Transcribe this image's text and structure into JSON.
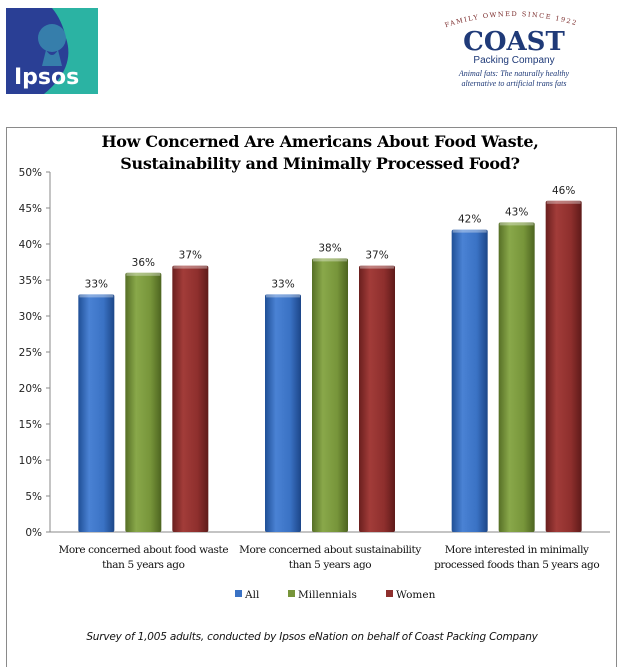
{
  "logos": {
    "left": {
      "text": "Ipsos",
      "icon": "ipsos-silhouette-logo"
    },
    "right": {
      "arc_text": "FAMILY OWNED SINCE 1922",
      "brand": "COAST",
      "brand_sub": "Packing Company",
      "tagline_1": "Animal fats: The naturally healthy",
      "tagline_2": "alternative to artificial trans fats"
    }
  },
  "footer": "Survey of 1,005 adults, conducted by Ipsos eNation on behalf of Coast Packing Company",
  "chart_data": {
    "type": "bar",
    "title": "How Concerned Are Americans About Food Waste, Sustainability and Minimally Processed Food?",
    "title_lines": [
      "How Concerned Are Americans About Food Waste,",
      "Sustainability and Minimally Processed Food?"
    ],
    "categories": [
      "More concerned about food waste than 5 years ago",
      "More concerned about sustainability than 5 years ago",
      "More interested in minimally processed foods than 5 years ago"
    ],
    "category_lines": [
      [
        "More concerned about food waste",
        "than 5 years ago"
      ],
      [
        "More concerned about sustainability",
        "than 5 years ago"
      ],
      [
        "More interested in minimally",
        "processed foods than 5 years ago"
      ]
    ],
    "series": [
      {
        "name": "All",
        "color": "#3a72c4",
        "values": [
          33,
          33,
          42
        ]
      },
      {
        "name": "Millennials",
        "color": "#77953a",
        "values": [
          36,
          38,
          43
        ]
      },
      {
        "name": "Women",
        "color": "#8e2f2d",
        "values": [
          37,
          37,
          46
        ]
      }
    ],
    "data_label_format": "{v}%",
    "ylim": [
      0,
      50
    ],
    "yticks": [
      0,
      5,
      10,
      15,
      20,
      25,
      30,
      35,
      40,
      45,
      50
    ],
    "ytick_labels": [
      "0%",
      "5%",
      "10%",
      "15%",
      "20%",
      "25%",
      "30%",
      "35%",
      "40%",
      "45%",
      "50%"
    ],
    "xlabel": "",
    "ylabel": "",
    "grid": false,
    "legend_position": "bottom"
  }
}
